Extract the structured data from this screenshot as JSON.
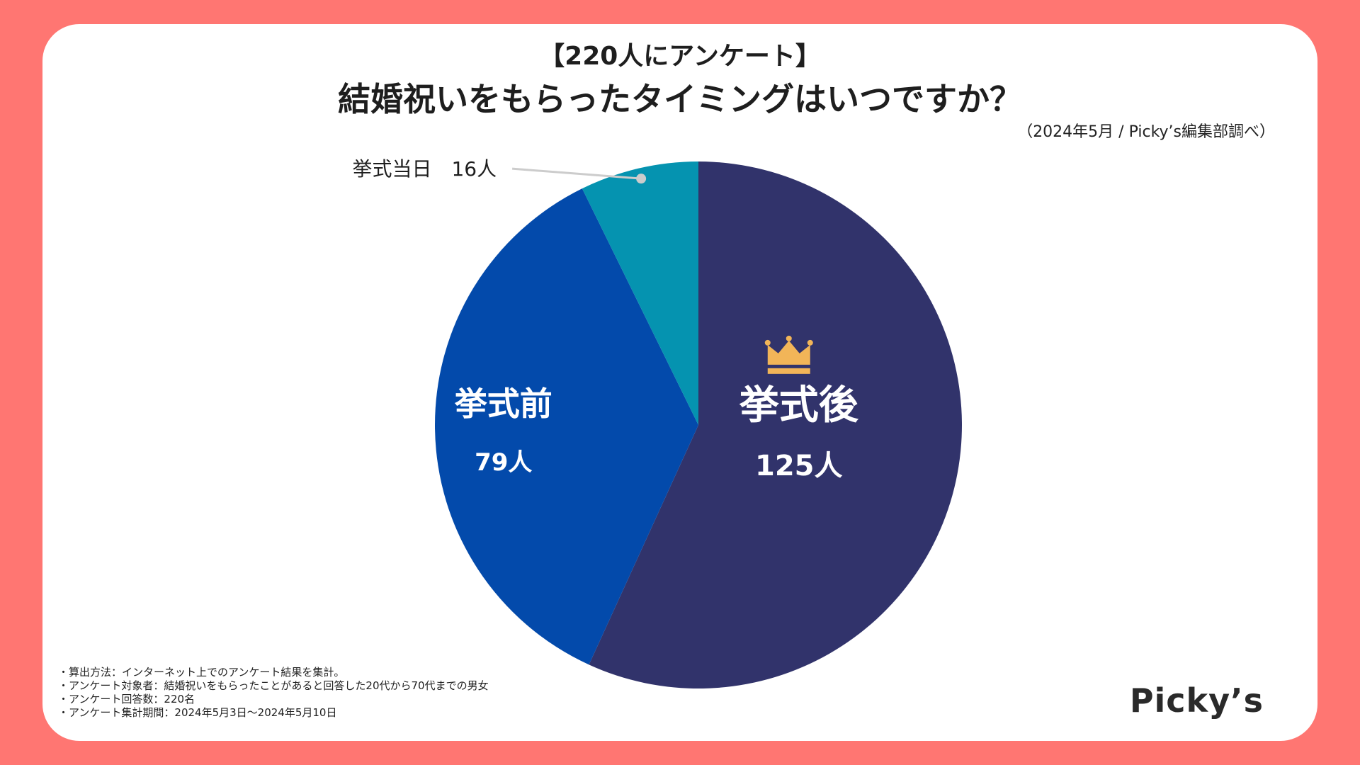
{
  "header": {
    "subtitle": "【220人にアンケート】",
    "title": "結婚祝いをもらったタイミングはいつですか？",
    "source": "（2024年5月 / Picky’s編集部調べ）"
  },
  "chart_data": {
    "type": "pie",
    "title": "結婚祝いをもらったタイミングはいつですか？",
    "total": 220,
    "unit": "人",
    "slices": [
      {
        "label": "挙式後",
        "value": 125,
        "value_label": "125人",
        "color": "#31336b",
        "top_rank": true
      },
      {
        "label": "挙式前",
        "value": 79,
        "value_label": "79人",
        "color": "#034aab"
      },
      {
        "label": "挙式当日",
        "value": 16,
        "value_label": "16人",
        "color": "#0593b0",
        "callout": "挙式当日　16人"
      }
    ],
    "start_direction": "12 o'clock",
    "order": "clockwise",
    "crown_color": "#f2b558",
    "leader_line_color": "#cccccc"
  },
  "notes": [
    "・算出方法：インターネット上でのアンケート結果を集計。",
    "・アンケート対象者：結婚祝いをもらったことがあると回答した20代から70代までの男女",
    "・アンケート回答数：220名",
    "・アンケート集計期間：2024年5月3日〜2024年5月10日"
  ],
  "brand": {
    "logo_text": "Picky’s"
  },
  "colors": {
    "background": "#ff7672",
    "card": "#ffffff"
  }
}
